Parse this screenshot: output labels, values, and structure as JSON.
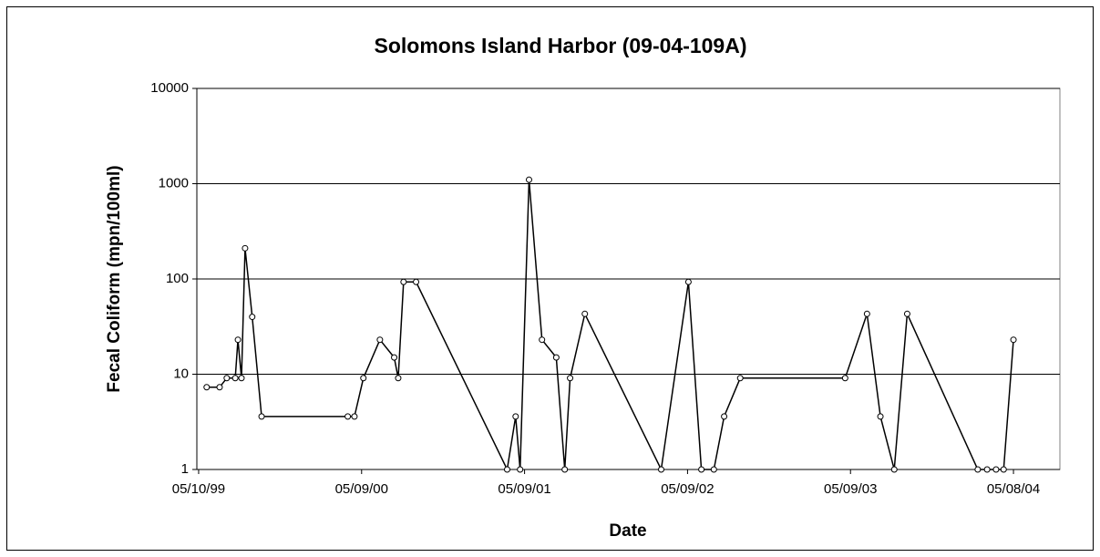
{
  "chart_data": {
    "type": "line",
    "title": "Solomons Island Harbor (09-04-109A)",
    "x_label": "Date",
    "y_label": "Fecal Coliform (mpn/100ml)",
    "log_y": true,
    "grid": true,
    "color": "#000000",
    "xlim": [
      "1999-05-06",
      "2004-08-20"
    ],
    "xticks": [
      {
        "value": "1999-05-10",
        "label": "05/10/99"
      },
      {
        "value": "2000-05-09",
        "label": "05/09/00"
      },
      {
        "value": "2001-05-09",
        "label": "05/09/01"
      },
      {
        "value": "2002-05-09",
        "label": "05/09/02"
      },
      {
        "value": "2003-05-09",
        "label": "05/09/03"
      },
      {
        "value": "2004-05-08",
        "label": "05/08/04"
      }
    ],
    "ylim": [
      1,
      10000
    ],
    "yticks": [
      1,
      10,
      100,
      1000,
      10000
    ],
    "x": [
      "1999-05-28",
      "1999-06-26",
      "1999-07-12",
      "1999-07-31",
      "1999-08-06",
      "1999-08-14",
      "1999-08-22",
      "1999-09-07",
      "1999-09-28",
      "2000-04-08",
      "2000-04-23",
      "2000-05-13",
      "2000-06-19",
      "2000-07-21",
      "2000-07-30",
      "2000-08-11",
      "2000-09-08",
      "2001-03-31",
      "2001-04-19",
      "2001-04-29",
      "2001-05-19",
      "2001-06-17",
      "2001-07-19",
      "2001-08-07",
      "2001-08-19",
      "2001-09-21",
      "2002-03-11",
      "2002-05-11",
      "2002-06-09",
      "2002-07-07",
      "2002-07-30",
      "2002-09-04",
      "2003-04-27",
      "2003-06-15",
      "2003-07-15",
      "2003-08-15",
      "2003-09-13",
      "2004-02-18",
      "2004-03-10",
      "2004-03-30",
      "2004-04-16",
      "2004-05-08"
    ],
    "values": [
      7.3,
      7.3,
      9.1,
      9.1,
      23,
      9.1,
      210,
      40,
      3.6,
      3.6,
      3.6,
      9.1,
      23,
      15,
      9.1,
      93,
      93,
      1,
      3.6,
      1,
      1100,
      23,
      15,
      1,
      9.1,
      43,
      1,
      93,
      1,
      1,
      3.6,
      9.1,
      9.1,
      43,
      3.6,
      1,
      43,
      1,
      1,
      1,
      1,
      23
    ]
  }
}
